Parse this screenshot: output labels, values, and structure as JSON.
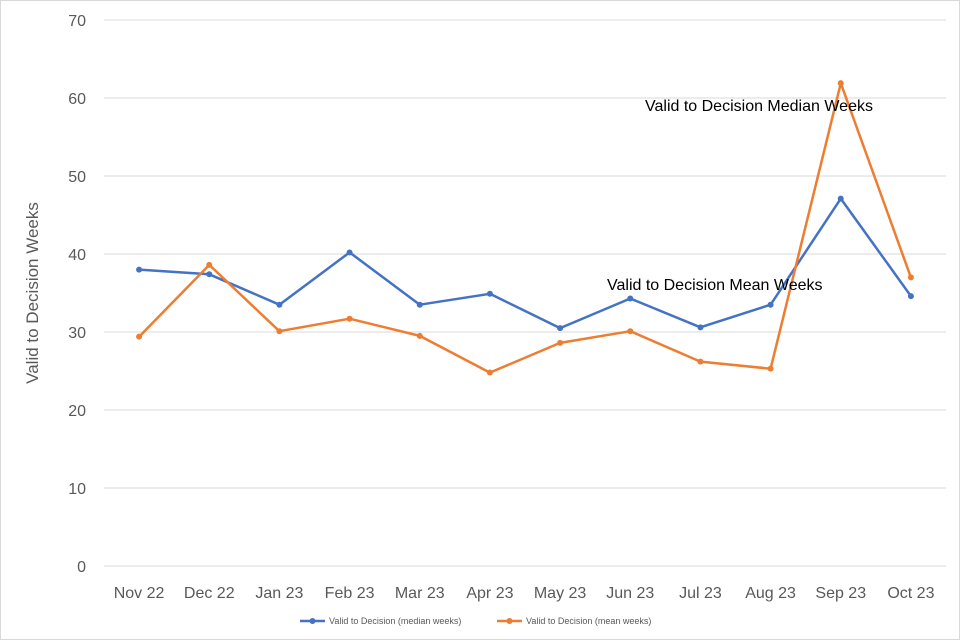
{
  "chart_data": {
    "type": "line",
    "title": "",
    "xlabel": "",
    "ylabel": "Valid to Decision Weeks",
    "ylim": [
      0,
      70
    ],
    "yticks": [
      0,
      10,
      20,
      30,
      40,
      50,
      60,
      70
    ],
    "grid": true,
    "legend_position": "bottom",
    "categories": [
      "Nov 22",
      "Dec 22",
      "Jan 23",
      "Feb 23",
      "Mar 23",
      "Apr 23",
      "May 23",
      "Jun 23",
      "Jul 23",
      "Aug 23",
      "Sep 23",
      "Oct 23"
    ],
    "series": [
      {
        "name": "Valid to Decision (median weeks)",
        "color": "#4472c4",
        "values": [
          38.0,
          37.4,
          33.5,
          40.2,
          33.5,
          34.9,
          30.5,
          34.3,
          30.6,
          33.5,
          47.1,
          34.6
        ]
      },
      {
        "name": "Valid to Decision (mean weeks)",
        "color": "#ed7d31",
        "values": [
          29.4,
          38.6,
          30.1,
          31.7,
          29.5,
          24.8,
          28.6,
          30.1,
          26.2,
          25.3,
          61.9,
          37.0
        ]
      }
    ],
    "annotations": [
      {
        "text": "Valid to Decision Median Weeks",
        "near": "Sep 23 peak"
      },
      {
        "text": "Valid to Decision Mean Weeks",
        "near": "Jun 23 - Aug 23"
      }
    ]
  }
}
